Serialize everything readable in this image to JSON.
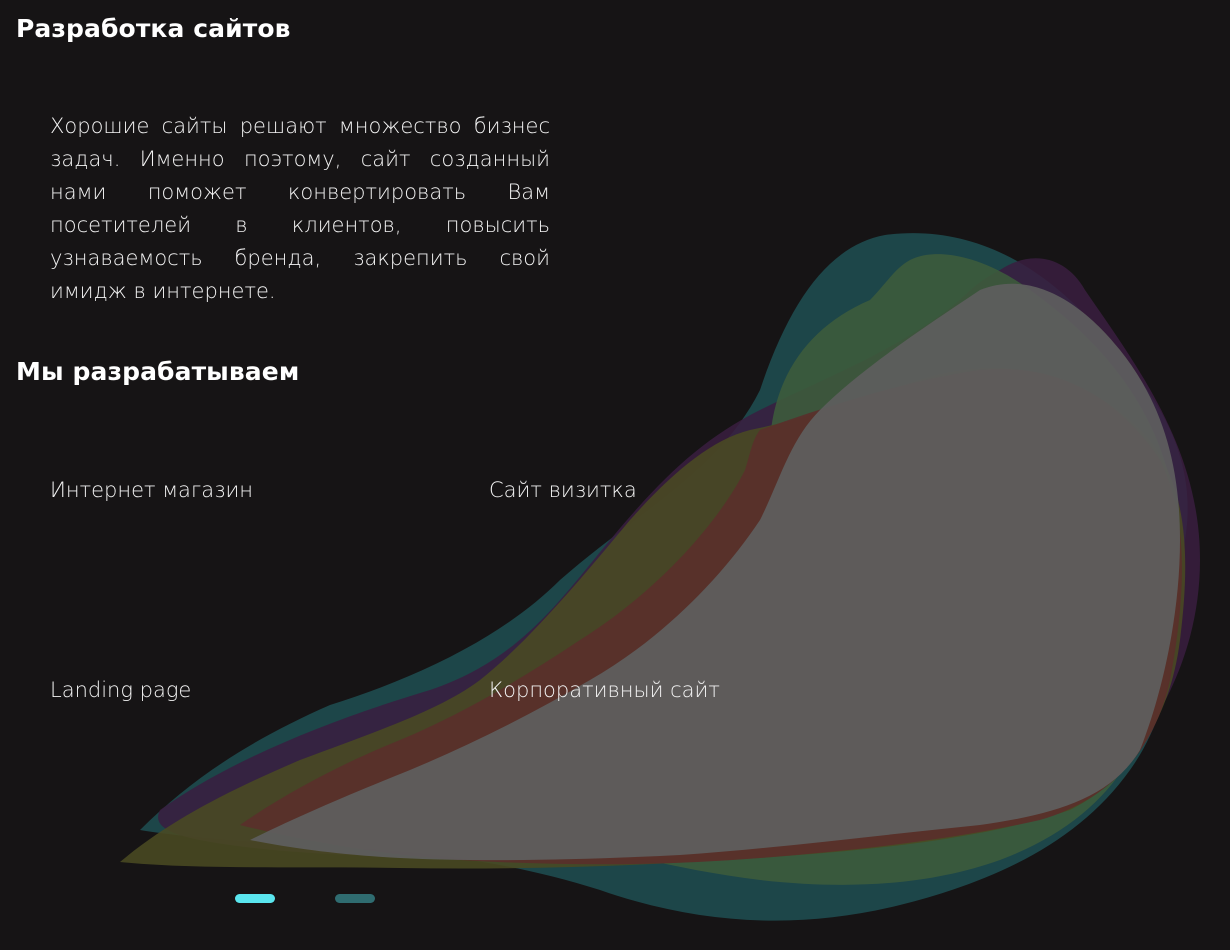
{
  "header": {
    "title": "Разработка сайтов"
  },
  "intro": {
    "text": "Хорошие сайты решают множество бизнес задач. Именно поэтому, сайт созданный нами поможет конвертировать Вам посетителей в клиентов, повысить узнаваемость бренда, закрепить свой имидж в интернете."
  },
  "services": {
    "heading": "Мы разрабатываем",
    "items": [
      {
        "label": "Интернет магазин"
      },
      {
        "label": "Сайт визитка"
      },
      {
        "label": "Landing page"
      },
      {
        "label": "Корпоративный сайт"
      }
    ]
  },
  "slider": {
    "active_index": 0,
    "count": 2
  },
  "colors": {
    "background": "#161415",
    "text": "#ffffff",
    "dot_active": "#5ae6ee",
    "dot_inactive": "#2f6c70",
    "blob_teal": "#1f4f52",
    "blob_green": "#3d5b3c",
    "blob_olive": "#4a4a22",
    "blob_purple": "#3a1d3f",
    "blob_red": "#5a2f2b",
    "blob_gray": "#5e5e5e"
  }
}
